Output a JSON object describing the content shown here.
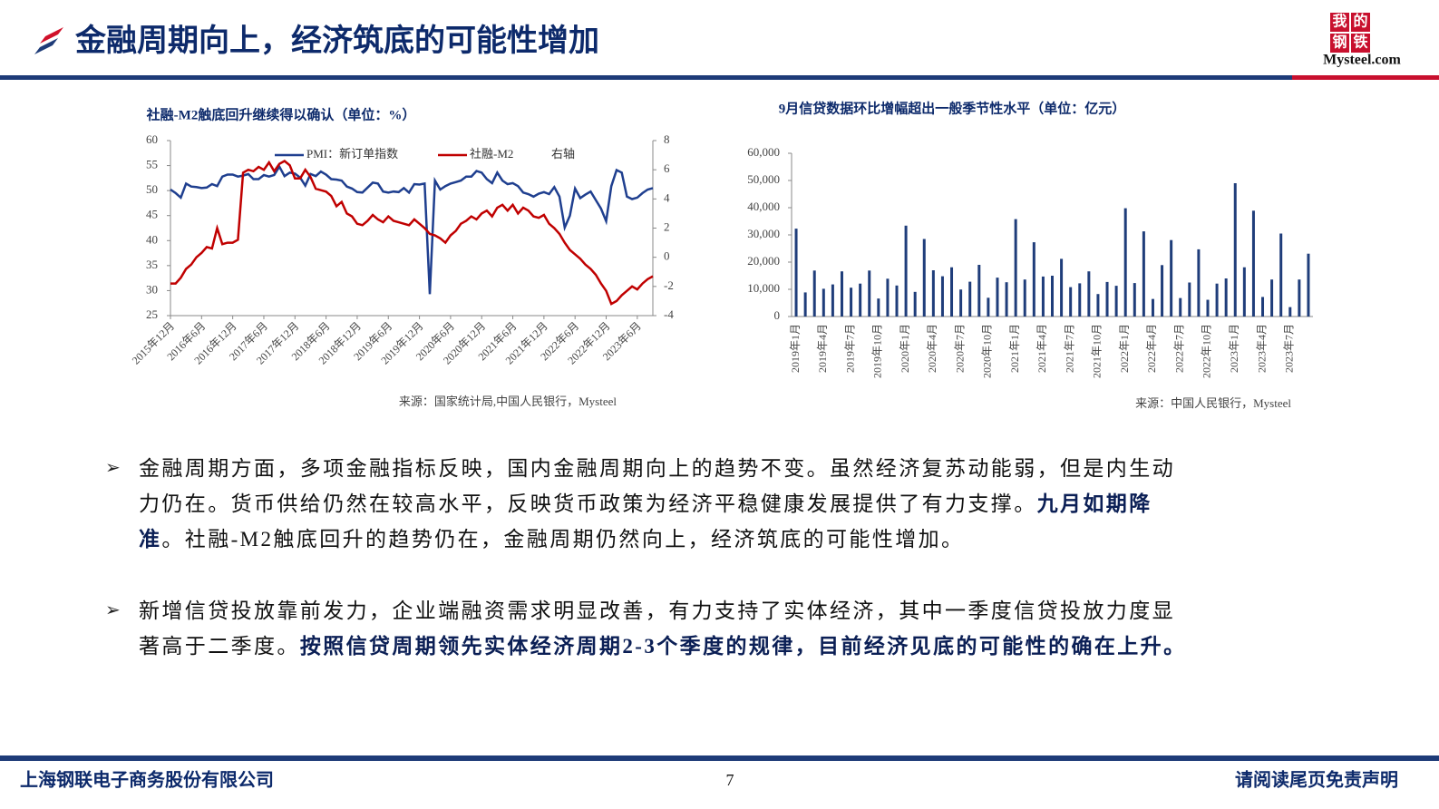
{
  "header": {
    "title": "金融周期向上，经济筑底的可能性增加",
    "logo": {
      "chars": [
        "我",
        "的",
        "钢",
        "铁"
      ],
      "brand": "Mysteel.com"
    }
  },
  "chart_data": [
    {
      "type": "line",
      "title": "社融-M2触底回升继续得以确认（单位：%）",
      "source": "来源：国家统计局,中国人民银行，Mysteel",
      "legend_note": "右轴",
      "categories": [
        "2015年12月",
        null,
        null,
        null,
        null,
        null,
        "2016年6月",
        null,
        null,
        null,
        null,
        null,
        "2016年12月",
        null,
        null,
        null,
        null,
        null,
        "2017年6月",
        null,
        null,
        null,
        null,
        null,
        "2017年12月",
        null,
        null,
        null,
        null,
        null,
        "2018年6月",
        null,
        null,
        null,
        null,
        null,
        "2018年12月",
        null,
        null,
        null,
        null,
        null,
        "2019年6月",
        null,
        null,
        null,
        null,
        null,
        "2019年12月",
        null,
        null,
        null,
        null,
        null,
        "2020年6月",
        null,
        null,
        null,
        null,
        null,
        "2020年12月",
        null,
        null,
        null,
        null,
        null,
        "2021年6月",
        null,
        null,
        null,
        null,
        null,
        "2021年12月",
        null,
        null,
        null,
        null,
        null,
        "2022年6月",
        null,
        null,
        null,
        null,
        null,
        "2022年12月",
        null,
        null,
        null,
        null,
        null,
        "2023年6月",
        null,
        null,
        null
      ],
      "series": [
        {
          "name": "PMI：新订单指数",
          "color": "#1f3f8f",
          "values": [
            50.2,
            49.5,
            48.6,
            51.4,
            50.8,
            50.7,
            50.5,
            50.6,
            51.3,
            50.9,
            52.8,
            53.2,
            53.2,
            52.8,
            53.0,
            53.3,
            52.3,
            52.3,
            53.1,
            52.8,
            53.1,
            54.8,
            52.9,
            53.6,
            53.4,
            52.6,
            51.0,
            53.3,
            52.9,
            53.8,
            53.2,
            52.3,
            52.2,
            52.0,
            50.8,
            50.4,
            49.7,
            49.6,
            50.6,
            51.6,
            51.4,
            49.8,
            49.6,
            49.8,
            49.7,
            50.5,
            49.6,
            51.3,
            51.2,
            51.4,
            29.3,
            52.0,
            50.2,
            50.9,
            51.4,
            51.7,
            52.0,
            52.8,
            52.8,
            53.9,
            53.6,
            52.3,
            51.5,
            53.6,
            52.0,
            51.3,
            51.5,
            50.9,
            49.6,
            49.3,
            48.8,
            49.4,
            49.7,
            49.3,
            50.7,
            48.8,
            42.6,
            45.0,
            50.4,
            48.5,
            49.2,
            49.8,
            48.1,
            46.4,
            43.9,
            50.9,
            54.1,
            53.6,
            48.8,
            48.3,
            48.6,
            49.5,
            50.2,
            50.5
          ]
        },
        {
          "name": "社融-M2",
          "color": "#c00000",
          "axis": "y2",
          "values": [
            -1.8,
            -1.8,
            -1.4,
            -0.8,
            -0.5,
            0,
            0.3,
            0.7,
            0.6,
            2.0,
            0.9,
            1.0,
            1.0,
            1.2,
            5.8,
            6.0,
            5.9,
            6.2,
            6.0,
            6.5,
            5.9,
            6.4,
            6.6,
            6.3,
            5.4,
            5.4,
            6.0,
            5.5,
            4.7,
            4.6,
            4.5,
            4.2,
            3.5,
            3.8,
            3.0,
            2.8,
            2.3,
            2.2,
            2.5,
            2.9,
            2.6,
            2.4,
            2.8,
            2.5,
            2.4,
            2.3,
            2.2,
            2.6,
            2.3,
            2.0,
            1.6,
            1.5,
            1.3,
            1.0,
            1.5,
            1.8,
            2.3,
            2.5,
            2.8,
            2.6,
            3.0,
            3.2,
            2.8,
            3.4,
            3.6,
            3.2,
            3.6,
            3.0,
            3.4,
            3.2,
            2.8,
            2.7,
            2.9,
            2.3,
            2.0,
            1.6,
            1.0,
            0.5,
            0.2,
            -0.1,
            -0.5,
            -0.8,
            -1.2,
            -1.8,
            -2.3,
            -3.2,
            -3.0,
            -2.6,
            -2.3,
            -2.0,
            -2.2,
            -1.8,
            -1.5,
            -1.3
          ]
        }
      ],
      "ylim": [
        25,
        60
      ],
      "yticks": [
        25,
        30,
        35,
        40,
        45,
        50,
        55,
        60
      ],
      "y2lim": [
        -4,
        8
      ],
      "y2ticks": [
        -4,
        -2,
        0,
        2,
        4,
        6,
        8
      ],
      "grid": false,
      "legend": "top"
    },
    {
      "type": "bar",
      "title": "9月信贷数据环比增幅超出一般季节性水平（单位：亿元）",
      "source": "来源：中国人民银行，Mysteel",
      "color": "#1f3d7a",
      "categories": [
        "2019年1月",
        null,
        null,
        "2019年4月",
        null,
        null,
        "2019年7月",
        null,
        null,
        "2019年10月",
        null,
        null,
        "2020年1月",
        null,
        null,
        "2020年4月",
        null,
        null,
        "2020年7月",
        null,
        null,
        "2020年10月",
        null,
        null,
        "2021年1月",
        null,
        null,
        "2021年4月",
        null,
        null,
        "2021年7月",
        null,
        null,
        "2021年10月",
        null,
        null,
        "2022年1月",
        null,
        null,
        "2022年4月",
        null,
        null,
        "2022年7月",
        null,
        null,
        "2022年10月",
        null,
        null,
        "2023年1月",
        null,
        null,
        "2023年4月",
        null,
        null,
        "2023年7月",
        null,
        null
      ],
      "values": [
        32300,
        8858,
        16900,
        10200,
        11800,
        16600,
        10600,
        12100,
        16900,
        6613,
        13900,
        11400,
        33400,
        9057,
        28500,
        17000,
        14800,
        18100,
        9927,
        12800,
        19000,
        6898,
        14300,
        12600,
        35800,
        13600,
        27300,
        14700,
        15000,
        21200,
        10800,
        12200,
        16600,
        8262,
        12700,
        11300,
        39800,
        12300,
        31300,
        6454,
        18900,
        28100,
        6790,
        12500,
        24700,
        6152,
        12100,
        14000,
        49000,
        18100,
        38900,
        7188,
        13600,
        30500,
        3459,
        13600,
        23100
      ],
      "ylim": [
        0,
        60000
      ],
      "yticks": [
        0,
        {
          "value": 10000,
          "label": "10,000"
        },
        {
          "value": 20000,
          "label": "20,000"
        },
        {
          "value": 30000,
          "label": "30,000"
        },
        {
          "value": 40000,
          "label": "40,000"
        },
        {
          "value": 50000,
          "label": "50,000"
        },
        {
          "value": 60000,
          "label": "60,000"
        }
      ],
      "grid": false
    }
  ],
  "paragraphs": [
    {
      "segments": [
        {
          "text": "金融周期方面，多项金融指标反映，国内金融周期向上的趋势不变。虽然经济复苏动能弱，但是内生动力仍在。货币供给仍然在较高水平，反映货币政策为经济平稳健康发展提供了有力支撑。",
          "bold": false
        },
        {
          "text": "九月如期降准",
          "bold": true
        },
        {
          "text": "。社融-M2触底回升的趋势仍在，金融周期仍然向上，经济筑底的可能性增加。",
          "bold": false
        }
      ]
    },
    {
      "segments": [
        {
          "text": "新增信贷投放靠前发力，企业端融资需求明显改善，有力支持了实体经济，其中一季度信贷投放力度显著高于二季度。",
          "bold": false
        },
        {
          "text": "按照信贷周期领先实体经济周期2-3个季度的规律，目前经济见底的可能性的确在上升。",
          "bold": true
        }
      ]
    }
  ],
  "footer": {
    "company": "上海钢联电子商务股份有限公司",
    "page": 7,
    "disclaimer": "请阅读尾页免责声明"
  }
}
